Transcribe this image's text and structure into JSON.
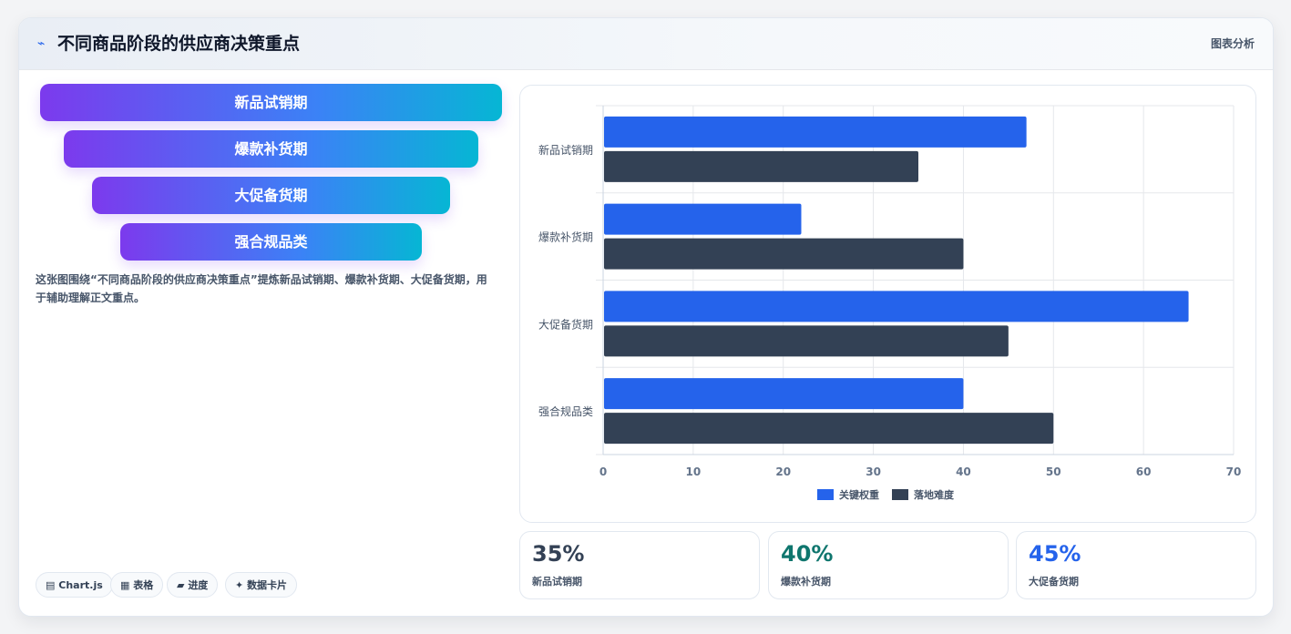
{
  "header": {
    "icon": "line-chart-icon",
    "title": "不同商品阶段的供应商决策重点",
    "right_label": "图表分析"
  },
  "funnel": [
    "新品试销期",
    "爆款补货期",
    "大促备货期",
    "强合规品类"
  ],
  "caption": "这张图围绕“不同商品阶段的供应商决策重点”提炼新品试销期、爆款补货期、大促备货期，用于辅助理解正文重点。",
  "chips": [
    {
      "icon": "chart-icon",
      "glyph": "▤",
      "label": "Chart.js"
    },
    {
      "icon": "table-icon",
      "glyph": "▦",
      "label": "表格"
    },
    {
      "icon": "progress-icon",
      "glyph": "▰",
      "label": "进度"
    },
    {
      "icon": "sparkle-icon",
      "glyph": "✦",
      "label": "数据卡片"
    }
  ],
  "chart_data": {
    "type": "bar",
    "orientation": "horizontal",
    "categories": [
      "新品试销期",
      "爆款补货期",
      "大促备货期",
      "强合规品类"
    ],
    "series": [
      {
        "name": "关键权重",
        "color": "#2563eb",
        "values": [
          47,
          22,
          65,
          40
        ]
      },
      {
        "name": "落地难度",
        "color": "#334155",
        "values": [
          35,
          40,
          45,
          50
        ]
      }
    ],
    "xlim": [
      0,
      70
    ],
    "xticks": [
      "0",
      "10",
      "20",
      "30",
      "40",
      "50",
      "60",
      "70"
    ],
    "grid": true,
    "legend": "bottom"
  },
  "stats": [
    {
      "value": "35%",
      "label": "新品试销期",
      "color": "#334155"
    },
    {
      "value": "40%",
      "label": "爆款补货期",
      "color": "#0f766e"
    },
    {
      "value": "45%",
      "label": "大促备货期",
      "color": "#2563eb"
    }
  ]
}
